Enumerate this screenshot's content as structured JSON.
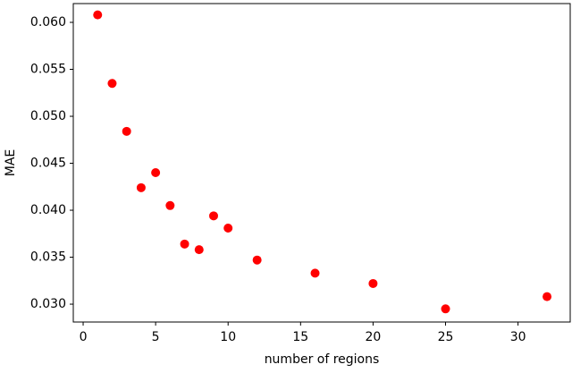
{
  "chart_data": {
    "type": "scatter",
    "xlabel": "number of regions",
    "ylabel": "MAE",
    "series": [
      {
        "color": "#ff0000",
        "x": [
          1,
          2,
          3,
          4,
          5,
          6,
          7,
          8,
          9,
          10,
          12,
          16,
          20,
          25,
          32
        ],
        "values": [
          0.0608,
          0.0535,
          0.0484,
          0.0424,
          0.044,
          0.0405,
          0.0364,
          0.0358,
          0.0394,
          0.0381,
          0.0347,
          0.0333,
          0.0322,
          0.0295,
          0.0308
        ]
      }
    ],
    "xlim": [
      -0.68,
      33.6
    ],
    "ylim": [
      0.0281,
      0.062
    ],
    "xticks": [
      0,
      5,
      10,
      15,
      20,
      25,
      30
    ],
    "yticks": [
      {
        "value": 0.03,
        "label": "0.030"
      },
      0.035,
      {
        "value": 0.04,
        "label": "0.040"
      },
      0.045,
      {
        "value": 0.05,
        "label": "0.050"
      },
      0.055,
      {
        "value": 0.06,
        "label": "0.060"
      }
    ]
  }
}
